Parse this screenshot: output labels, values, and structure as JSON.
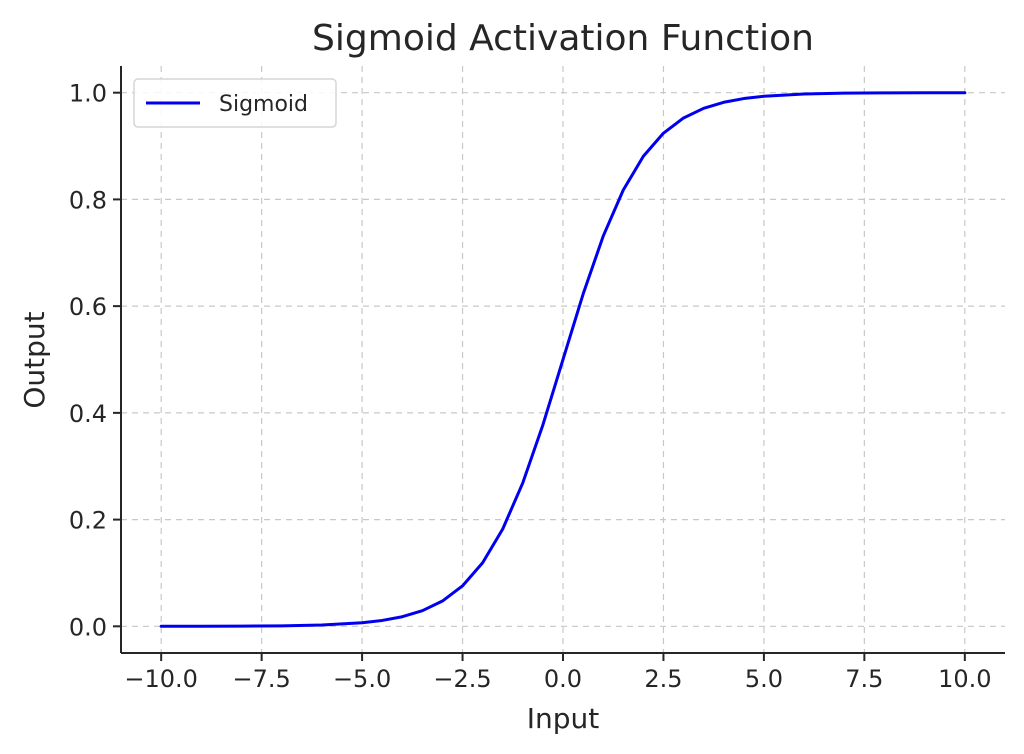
{
  "chart_data": {
    "type": "line",
    "title": "Sigmoid Activation Function",
    "xlabel": "Input",
    "ylabel": "Output",
    "xlim": [
      -11,
      11
    ],
    "ylim": [
      -0.05,
      1.05
    ],
    "xticks": [
      -10.0,
      -7.5,
      -5.0,
      -2.5,
      0.0,
      2.5,
      5.0,
      7.5,
      10.0
    ],
    "xtick_labels": [
      "−10.0",
      "−7.5",
      "−5.0",
      "−2.5",
      "0.0",
      "2.5",
      "5.0",
      "7.5",
      "10.0"
    ],
    "yticks": [
      0.0,
      0.2,
      0.4,
      0.6,
      0.8,
      1.0
    ],
    "ytick_labels": [
      "0.0",
      "0.2",
      "0.4",
      "0.6",
      "0.8",
      "1.0"
    ],
    "grid": true,
    "legend": {
      "position": "top-left"
    },
    "series": [
      {
        "name": "Sigmoid",
        "color": "#0000ee",
        "x": [
          -10,
          -9,
          -8,
          -7,
          -6,
          -5,
          -4.5,
          -4,
          -3.5,
          -3,
          -2.5,
          -2,
          -1.5,
          -1,
          -0.5,
          0,
          0.5,
          1,
          1.5,
          2,
          2.5,
          3,
          3.5,
          4,
          4.5,
          5,
          6,
          7,
          8,
          9,
          10
        ],
        "y": [
          4.54e-05,
          0.0001234,
          0.0003354,
          0.000911,
          0.002473,
          0.006693,
          0.010987,
          0.017986,
          0.029312,
          0.047426,
          0.075858,
          0.119203,
          0.182426,
          0.268941,
          0.377541,
          0.5,
          0.622459,
          0.731059,
          0.817574,
          0.880797,
          0.924142,
          0.952574,
          0.970688,
          0.982014,
          0.989013,
          0.993307,
          0.997527,
          0.999089,
          0.999665,
          0.999877,
          0.999955
        ]
      }
    ]
  }
}
